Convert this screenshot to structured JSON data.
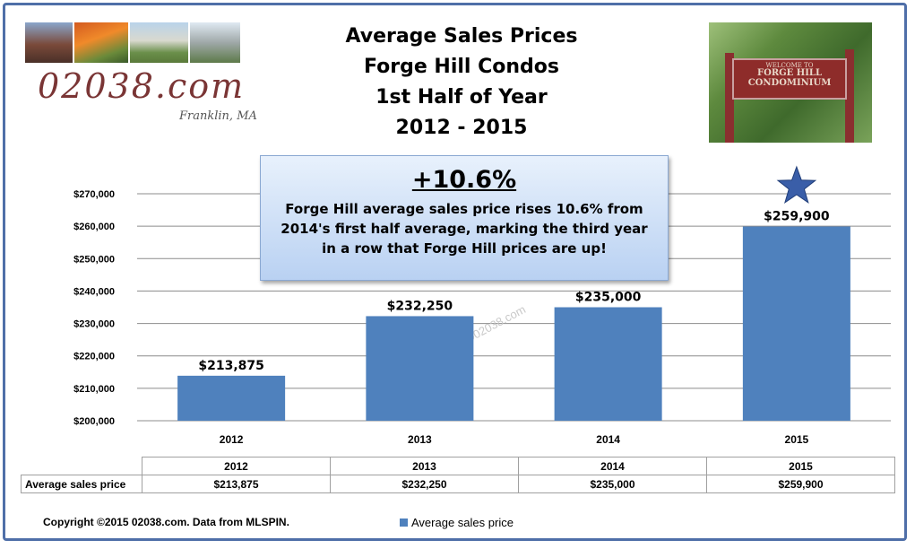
{
  "title": {
    "line1": "Average Sales Prices",
    "line2": "Forge Hill Condos",
    "line3": "1st Half of Year",
    "line4": "2012 - 2015"
  },
  "logo": {
    "text": "02038.com",
    "subtext": "Franklin, MA"
  },
  "sign": {
    "line1": "WELCOME TO",
    "line2": "FORGE HILL",
    "line3": "CONDOMINIUM"
  },
  "callout": {
    "headline": "+10.6%",
    "body": "Forge Hill average sales price rises 10.6% from 2014's first half average, marking the third year in a row that Forge Hill prices are up!"
  },
  "watermark": "©02038.com",
  "chart_data": {
    "type": "bar",
    "categories": [
      "2012",
      "2013",
      "2014",
      "2015"
    ],
    "series": [
      {
        "name": "Average sales price",
        "values": [
          213875,
          232250,
          235000,
          259900
        ]
      }
    ],
    "data_labels": [
      "$213,875",
      "$232,250",
      "$235,000",
      "$259,900"
    ],
    "yticks": [
      "$200,000",
      "$210,000",
      "$220,000",
      "$230,000",
      "$240,000",
      "$250,000",
      "$260,000",
      "$270,000"
    ],
    "ylim": [
      200000,
      270000
    ],
    "grid": true,
    "legend_position": "bottom",
    "bar_color": "#4f81bd",
    "highlight_marker": {
      "category": "2015",
      "icon": "star-icon",
      "color": "#3a5ea8"
    }
  },
  "data_table": {
    "row_label": "Average sales price",
    "headers": [
      "2012",
      "2013",
      "2014",
      "2015"
    ],
    "values": [
      "$213,875",
      "$232,250",
      "$235,000",
      "$259,900"
    ]
  },
  "footer": {
    "copyright": "Copyright ©2015 02038.com. Data from MLSPIN.",
    "legend_label": "Average sales price"
  },
  "colors": {
    "border": "#4f6fa8",
    "bar": "#4f81bd",
    "logo_text": "#7a3535"
  }
}
